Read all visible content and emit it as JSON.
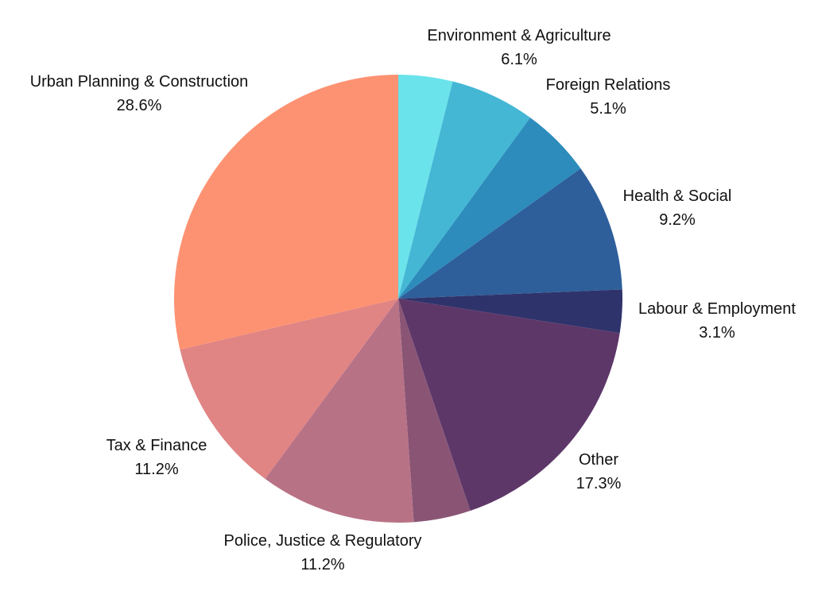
{
  "chart_data": {
    "type": "pie",
    "title": "",
    "start": "top",
    "direction": "clockwise",
    "slices": [
      {
        "label": "",
        "value": 3.9,
        "percent_label": "",
        "color": "#6be3ea"
      },
      {
        "label": "Environment & Agriculture",
        "value": 6.1,
        "percent_label": "6.1%",
        "color": "#44b7d5"
      },
      {
        "label": "Foreign Relations",
        "value": 5.1,
        "percent_label": "5.1%",
        "color": "#2d8cbc"
      },
      {
        "label": "Health & Social",
        "value": 9.2,
        "percent_label": "9.2%",
        "color": "#2e5f9a"
      },
      {
        "label": "Labour & Employment",
        "value": 3.1,
        "percent_label": "3.1%",
        "color": "#2f336b"
      },
      {
        "label": "Other",
        "value": 17.3,
        "percent_label": "17.3%",
        "color": "#5e3769"
      },
      {
        "label": "",
        "value": 4.1,
        "percent_label": "",
        "color": "#8a5575"
      },
      {
        "label": "Police, Justice & Regulatory",
        "value": 11.2,
        "percent_label": "11.2%",
        "color": "#b87286"
      },
      {
        "label": "Tax & Finance",
        "value": 11.2,
        "percent_label": "11.2%",
        "color": "#e08484"
      },
      {
        "label": "Urban Planning & Construction",
        "value": 28.6,
        "percent_label": "28.6%",
        "color": "#fd9272"
      }
    ]
  }
}
